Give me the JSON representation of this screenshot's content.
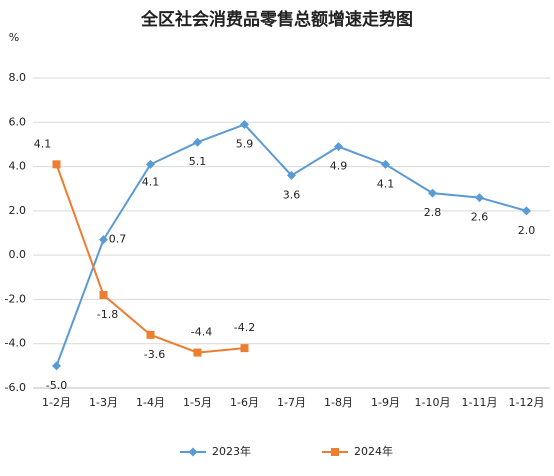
{
  "chart_data": {
    "type": "line",
    "title": "全区社会消费品零售总额增速走势图",
    "y_unit": "%",
    "categories": [
      "1-2月",
      "1-3月",
      "1-4月",
      "1-5月",
      "1-6月",
      "1-7月",
      "1-8月",
      "1-9月",
      "1-10月",
      "1-11月",
      "1-12月"
    ],
    "series": [
      {
        "name": "2023年",
        "color": "#5b9bd5",
        "marker": "diamond",
        "values": [
          -5.0,
          0.7,
          4.1,
          5.1,
          5.9,
          3.6,
          4.9,
          4.1,
          2.8,
          2.6,
          2.0
        ],
        "value_labels": [
          "-5.0",
          "0.7",
          "4.1",
          "5.1",
          "5.9",
          "3.6",
          "4.9",
          "4.1",
          "2.8",
          "2.6",
          "2.0"
        ]
      },
      {
        "name": "2024年",
        "color": "#ed7d31",
        "marker": "square",
        "values": [
          4.1,
          -1.8,
          -3.6,
          -4.4,
          -4.2,
          null,
          null,
          null,
          null,
          null,
          null
        ],
        "value_labels": [
          "4.1",
          "-1.8",
          "-3.6",
          "-4.4",
          "-4.2",
          null,
          null,
          null,
          null,
          null,
          null
        ]
      }
    ],
    "ylim": [
      -6,
      8
    ],
    "yticks": [
      {
        "value": -6,
        "label": "-6.0"
      },
      {
        "value": -4,
        "label": "-4.0"
      },
      {
        "value": -2,
        "label": "-2.0"
      },
      {
        "value": 0,
        "label": "0.0"
      },
      {
        "value": 2,
        "label": "2.0"
      },
      {
        "value": 4,
        "label": "4.0"
      },
      {
        "value": 6,
        "label": "6.0"
      },
      {
        "value": 8,
        "label": "8.0"
      }
    ],
    "grid": true,
    "legend": "bottom"
  }
}
